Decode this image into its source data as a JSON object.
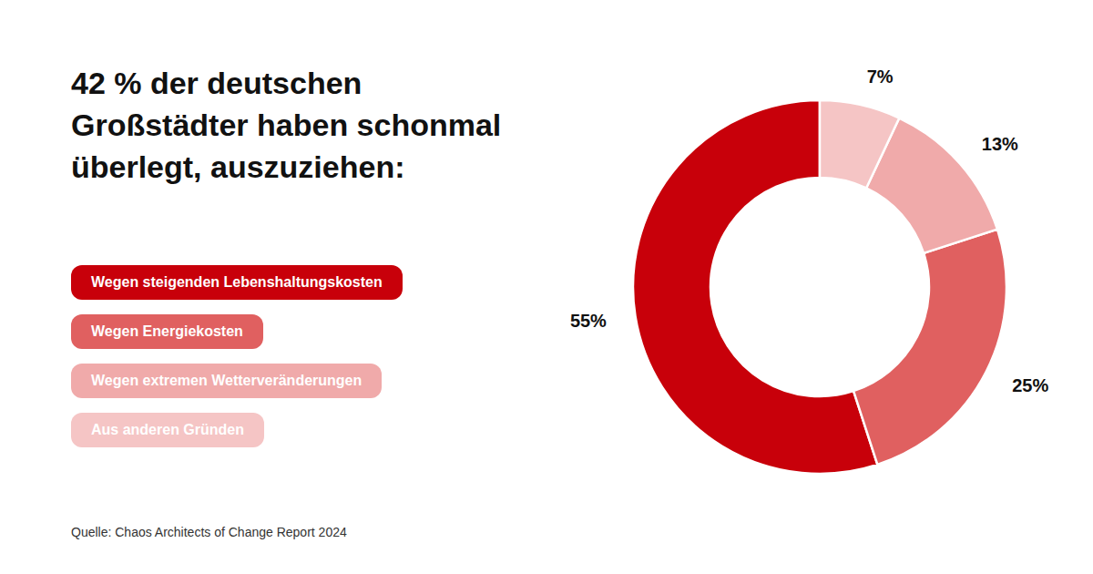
{
  "chart_data": {
    "type": "pie",
    "title": "42 % der deutschen\nGroßstädter haben schonmal\nüberlegt, auszuziehen:",
    "categories": [
      "Wegen steigenden Lebenshaltungskosten",
      "Wegen Energiekosten",
      "Wegen extremen Wetterveränderungen",
      "Aus anderen Gründen"
    ],
    "values": [
      55,
      25,
      13,
      7
    ],
    "value_labels": [
      "55%",
      "25%",
      "13%",
      "7%"
    ],
    "colors": [
      "#C8000A",
      "#E06060",
      "#F0AAAA",
      "#F5C5C5"
    ],
    "data_labels": true,
    "legend": "left",
    "annotations": [
      "Quelle: Chaos Architects of Change Report 2024"
    ]
  }
}
